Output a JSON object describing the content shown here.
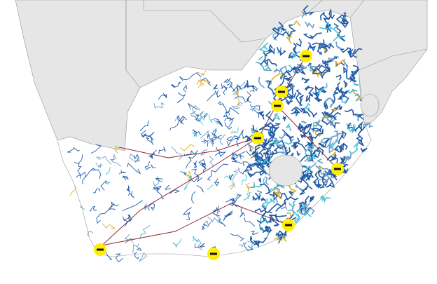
{
  "map": {
    "colors": {
      "ocean": "#ffffff",
      "neighbour_land": "#e6e6e6",
      "country": "#ffffff",
      "border": "#9a9a9a",
      "road_dense": "#1f5aa6",
      "road_light": "#6fa0c8",
      "road_major": "#8b2a3a",
      "road_yellow": "#e0b030",
      "road_cyan": "#4cc3d9",
      "marker": "#ffee00"
    },
    "markers": [
      {
        "name": "marker-1",
        "label": ""
      },
      {
        "name": "marker-2",
        "label": ""
      },
      {
        "name": "marker-3",
        "label": ""
      },
      {
        "name": "marker-4",
        "label": ""
      },
      {
        "name": "marker-5",
        "label": ""
      },
      {
        "name": "marker-6",
        "label": ""
      },
      {
        "name": "marker-7",
        "label": ""
      },
      {
        "name": "marker-8",
        "label": ""
      }
    ]
  }
}
